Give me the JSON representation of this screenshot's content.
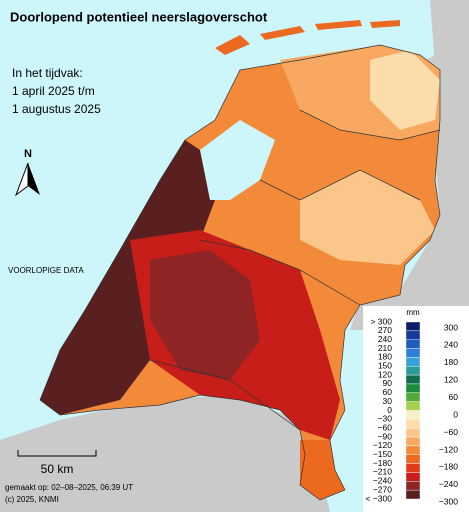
{
  "title": "Doorlopend potentieel neerslagoverschot",
  "period": [
    "In het tijdvak:",
    "1 april 2025 t/m",
    "1 augustus 2025"
  ],
  "north_arrow": "N",
  "watermark": "VOORLOPIGE DATA",
  "scale_bar": "50 km",
  "credits": [
    "gemaakt op: 02–08–2025, 06:39 UT",
    "(c) 2025, KNMI"
  ],
  "legend": {
    "unit": "mm",
    "left_labels": [
      "> 300",
      "270",
      "240",
      "210",
      "180",
      "150",
      "120",
      "90",
      "60",
      "30",
      "0",
      "−30",
      "−60",
      "−90",
      "−120",
      "−150",
      "−180",
      "−210",
      "−240",
      "−270",
      "< −300"
    ],
    "right_labels": [
      "300",
      "240",
      "180",
      "120",
      "60",
      "0",
      "−60",
      "−120",
      "−180",
      "−240",
      "−300"
    ],
    "colors": [
      "#0b1f6b",
      "#16399a",
      "#1f5cbf",
      "#2b80d6",
      "#35a3d8",
      "#2b9a9a",
      "#0f6e4c",
      "#1b8c3c",
      "#52aa3c",
      "#a6cf4a",
      "#f6f0c8",
      "#fcdcaa",
      "#fbc68a",
      "#f8a860",
      "#f28a3a",
      "#ec6a20",
      "#e03c1a",
      "#c81e1a",
      "#8e2424",
      "#5a2020"
    ]
  }
}
